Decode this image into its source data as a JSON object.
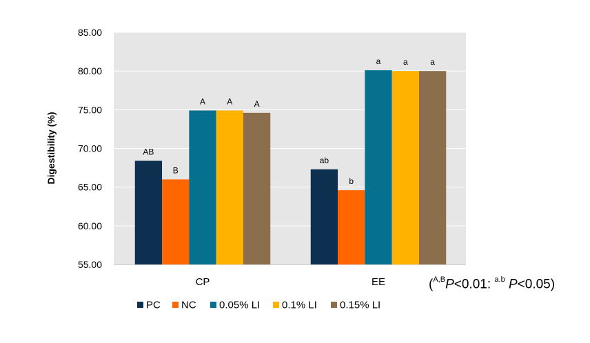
{
  "chart_data": {
    "type": "bar",
    "ylabel": "Digestibility (%)",
    "xlabel": "",
    "ylim": [
      55,
      85
    ],
    "yticks": [
      "55.00",
      "60.00",
      "65.00",
      "70.00",
      "75.00",
      "80.00",
      "85.00"
    ],
    "categories": [
      "CP",
      "EE"
    ],
    "grid": true,
    "legend_position": "bottom",
    "series": [
      {
        "name": "PC",
        "color": "#0d3050",
        "values": [
          68.4,
          67.3
        ],
        "labels": [
          "AB",
          "ab"
        ]
      },
      {
        "name": "NC",
        "color": "#ff6600",
        "values": [
          66.0,
          64.6
        ],
        "labels": [
          "B",
          "b"
        ]
      },
      {
        "name": "0.05% LI",
        "color": "#05718f",
        "values": [
          74.9,
          80.1
        ],
        "labels": [
          "A",
          "a"
        ]
      },
      {
        "name": "0.1% LI",
        "color": "#ffb300",
        "values": [
          74.9,
          80.0
        ],
        "labels": [
          "A",
          "a"
        ]
      },
      {
        "name": "0.15% LI",
        "color": "#8b6e4b",
        "values": [
          74.6,
          80.0
        ],
        "labels": [
          "A",
          "a"
        ]
      }
    ]
  },
  "note": {
    "open": "(",
    "sup1": "A,B",
    "p1": "P",
    "text1": "<0.01: ",
    "sup2": "a.b",
    "p2": "P",
    "text2": "<0.05)"
  }
}
